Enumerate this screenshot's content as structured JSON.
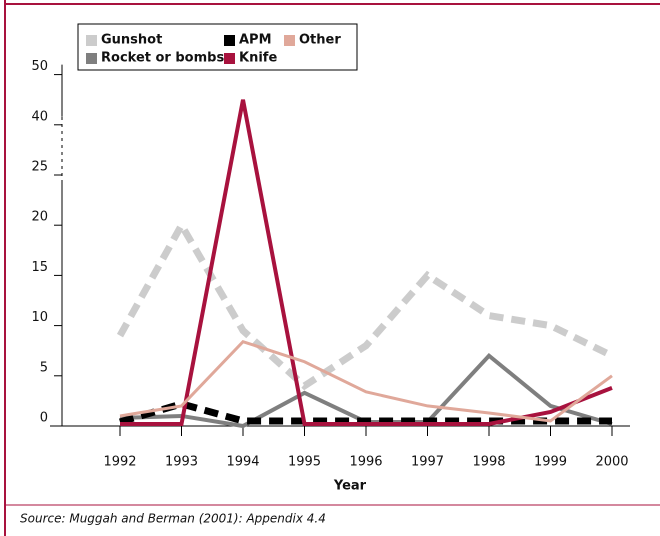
{
  "chart_data": {
    "type": "line",
    "x_label": "Year",
    "source": "Source: Muggah and Berman (2001): Appendix 4.4",
    "categories": [
      "1992",
      "1993",
      "1994",
      "1995",
      "1996",
      "1997",
      "1998",
      "1999",
      "2000"
    ],
    "series": [
      {
        "name": "Gunshot",
        "color": "#cccccc",
        "dashed": true,
        "values": [
          9,
          20,
          9.5,
          4,
          8,
          15,
          11,
          10,
          7
        ]
      },
      {
        "name": "Rocket or bombs",
        "color": "#7f7f7f",
        "dashed": false,
        "values": [
          0.8,
          1,
          0,
          3.3,
          0.4,
          0.4,
          7,
          2,
          0.2
        ]
      },
      {
        "name": "APM",
        "color": "#000000",
        "dashed": true,
        "values": [
          0.4,
          2.2,
          0.5,
          0.5,
          0.5,
          0.5,
          0.5,
          0.5,
          0.5
        ]
      },
      {
        "name": "Knife",
        "color": "#a8123e",
        "dashed": false,
        "values": [
          0.2,
          0.2,
          45,
          0.2,
          0.2,
          0.2,
          0.2,
          1.4,
          3.8
        ]
      },
      {
        "name": "Other",
        "color": "#e0a89a",
        "dashed": false,
        "values": [
          1,
          2,
          8.4,
          6.4,
          3.4,
          2,
          1.3,
          0.5,
          5
        ]
      }
    ],
    "ylim": [
      0,
      50
    ],
    "yticks": [
      0,
      5,
      10,
      15,
      20,
      25,
      40,
      50
    ],
    "axis_break": true
  }
}
